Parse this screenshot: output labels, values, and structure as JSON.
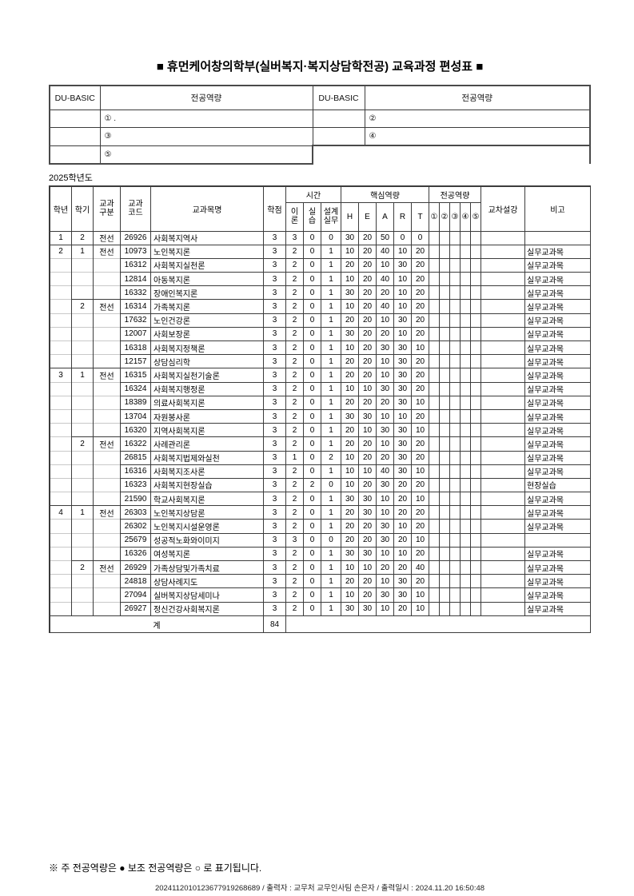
{
  "title": "■ 휴먼케어창의학부(실버복지·복지상담학전공) 교육과정 편성표 ■",
  "competency_table": {
    "du_basic_label": "DU-BASIC",
    "major_label": "전공역량",
    "items": [
      "① .",
      "②",
      "③",
      "④",
      "⑤"
    ]
  },
  "year_label": "2025학년도",
  "curriculum_table": {
    "headers": {
      "year": "학년",
      "semester": "학기",
      "course_type": "교과\n구분",
      "course_code": "교과\n코드",
      "course_name": "교과목명",
      "credits": "학점",
      "time_group": "시간",
      "time_sub": [
        "이\n론",
        "실\n습",
        "설계\n실무"
      ],
      "core_group": "핵심역량",
      "core_sub": [
        "H",
        "E",
        "A",
        "R",
        "T"
      ],
      "major_group": "전공역량",
      "major_sub": [
        "①",
        "②",
        "③",
        "④",
        "⑤"
      ],
      "cross": "교차설강",
      "note": "비고"
    },
    "row_columns": [
      "학년",
      "학기",
      "교과구분",
      "교과코드",
      "교과목명",
      "학점",
      "이론",
      "실습",
      "설계실무",
      "H",
      "E",
      "A",
      "R",
      "T",
      "비고"
    ],
    "rows": [
      [
        "1",
        "2",
        "전선",
        "26926",
        "사회복지역사",
        "3",
        "3",
        "0",
        "0",
        "30",
        "20",
        "50",
        "0",
        "0",
        ""
      ],
      [
        "2",
        "1",
        "전선",
        "10973",
        "노인복지론",
        "3",
        "2",
        "0",
        "1",
        "10",
        "20",
        "40",
        "10",
        "20",
        "실무교과목"
      ],
      [
        "",
        "",
        "",
        "16312",
        "사회복지실천론",
        "3",
        "2",
        "0",
        "1",
        "20",
        "20",
        "10",
        "30",
        "20",
        "실무교과목"
      ],
      [
        "",
        "",
        "",
        "12814",
        "아동복지론",
        "3",
        "2",
        "0",
        "1",
        "10",
        "20",
        "40",
        "10",
        "20",
        "실무교과목"
      ],
      [
        "",
        "",
        "",
        "16332",
        "장애인복지론",
        "3",
        "2",
        "0",
        "1",
        "30",
        "20",
        "20",
        "10",
        "20",
        "실무교과목"
      ],
      [
        "",
        "2",
        "전선",
        "16314",
        "가족복지론",
        "3",
        "2",
        "0",
        "1",
        "10",
        "20",
        "40",
        "10",
        "20",
        "실무교과목"
      ],
      [
        "",
        "",
        "",
        "17632",
        "노인건강론",
        "3",
        "2",
        "0",
        "1",
        "20",
        "20",
        "10",
        "30",
        "20",
        "실무교과목"
      ],
      [
        "",
        "",
        "",
        "12007",
        "사회보장론",
        "3",
        "2",
        "0",
        "1",
        "30",
        "20",
        "20",
        "10",
        "20",
        "실무교과목"
      ],
      [
        "",
        "",
        "",
        "16318",
        "사회복지정책론",
        "3",
        "2",
        "0",
        "1",
        "10",
        "20",
        "30",
        "30",
        "10",
        "실무교과목"
      ],
      [
        "",
        "",
        "",
        "12157",
        "상담심리학",
        "3",
        "2",
        "0",
        "1",
        "20",
        "20",
        "10",
        "30",
        "20",
        "실무교과목"
      ],
      [
        "3",
        "1",
        "전선",
        "16315",
        "사회복지실천기술론",
        "3",
        "2",
        "0",
        "1",
        "20",
        "20",
        "10",
        "30",
        "20",
        "실무교과목"
      ],
      [
        "",
        "",
        "",
        "16324",
        "사회복지행정론",
        "3",
        "2",
        "0",
        "1",
        "10",
        "10",
        "30",
        "30",
        "20",
        "실무교과목"
      ],
      [
        "",
        "",
        "",
        "18389",
        "의료사회복지론",
        "3",
        "2",
        "0",
        "1",
        "20",
        "20",
        "20",
        "30",
        "10",
        "실무교과목"
      ],
      [
        "",
        "",
        "",
        "13704",
        "자원봉사론",
        "3",
        "2",
        "0",
        "1",
        "30",
        "30",
        "10",
        "10",
        "20",
        "실무교과목"
      ],
      [
        "",
        "",
        "",
        "16320",
        "지역사회복지론",
        "3",
        "2",
        "0",
        "1",
        "20",
        "10",
        "30",
        "30",
        "10",
        "실무교과목"
      ],
      [
        "",
        "2",
        "전선",
        "16322",
        "사례관리론",
        "3",
        "2",
        "0",
        "1",
        "20",
        "20",
        "10",
        "30",
        "20",
        "실무교과목"
      ],
      [
        "",
        "",
        "",
        "26815",
        "사회복지법제와실천",
        "3",
        "1",
        "0",
        "2",
        "10",
        "20",
        "20",
        "30",
        "20",
        "실무교과목"
      ],
      [
        "",
        "",
        "",
        "16316",
        "사회복지조사론",
        "3",
        "2",
        "0",
        "1",
        "10",
        "10",
        "40",
        "30",
        "10",
        "실무교과목"
      ],
      [
        "",
        "",
        "",
        "16323",
        "사회복지현장실습",
        "3",
        "2",
        "2",
        "0",
        "10",
        "20",
        "30",
        "20",
        "20",
        "현장실습"
      ],
      [
        "",
        "",
        "",
        "21590",
        "학교사회복지론",
        "3",
        "2",
        "0",
        "1",
        "30",
        "30",
        "10",
        "20",
        "10",
        "실무교과목"
      ],
      [
        "4",
        "1",
        "전선",
        "26303",
        "노인복지상담론",
        "3",
        "2",
        "0",
        "1",
        "20",
        "30",
        "10",
        "20",
        "20",
        "실무교과목"
      ],
      [
        "",
        "",
        "",
        "26302",
        "노인복지시설운영론",
        "3",
        "2",
        "0",
        "1",
        "20",
        "20",
        "30",
        "10",
        "20",
        "실무교과목"
      ],
      [
        "",
        "",
        "",
        "25679",
        "성공적노화와이미지",
        "3",
        "3",
        "0",
        "0",
        "20",
        "20",
        "30",
        "20",
        "10",
        ""
      ],
      [
        "",
        "",
        "",
        "16326",
        "여성복지론",
        "3",
        "2",
        "0",
        "1",
        "30",
        "30",
        "10",
        "10",
        "20",
        "실무교과목"
      ],
      [
        "",
        "2",
        "전선",
        "26929",
        "가족상담및가족치료",
        "3",
        "2",
        "0",
        "1",
        "10",
        "10",
        "20",
        "20",
        "40",
        "실무교과목"
      ],
      [
        "",
        "",
        "",
        "24818",
        "상담사례지도",
        "3",
        "2",
        "0",
        "1",
        "20",
        "20",
        "10",
        "30",
        "20",
        "실무교과목"
      ],
      [
        "",
        "",
        "",
        "27094",
        "실버복지상담세미나",
        "3",
        "2",
        "0",
        "1",
        "10",
        "20",
        "30",
        "30",
        "10",
        "실무교과목"
      ],
      [
        "",
        "",
        "",
        "26927",
        "정신건강사회복지론",
        "3",
        "2",
        "0",
        "1",
        "30",
        "30",
        "10",
        "20",
        "10",
        "실무교과목"
      ]
    ],
    "total_label": "계",
    "total_credits": "84"
  },
  "footnote": "※ 주 전공역량은 ● 보조 전공역량은 ○ 로 표기됩니다.",
  "print_info": "2024112010123677919268689 / 출력자 : 교무처 교무인사팀 손은자 / 출력일시 : 2024.11.20 16:50:48"
}
